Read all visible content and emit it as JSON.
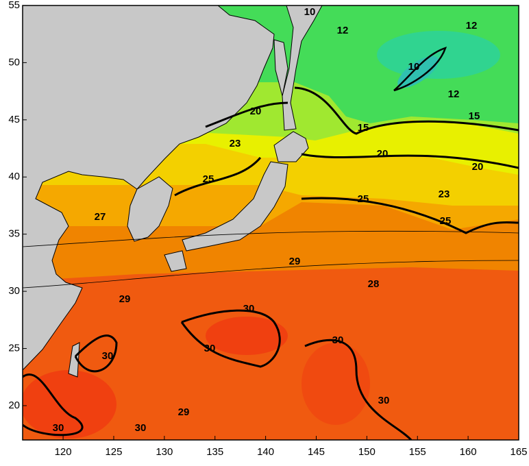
{
  "map": {
    "xlim": [
      116,
      165
    ],
    "ylim": [
      17,
      55
    ],
    "xticks": [
      120,
      125,
      130,
      135,
      140,
      145,
      150,
      155,
      160,
      165
    ],
    "yticks": [
      20,
      25,
      30,
      35,
      40,
      45,
      50,
      55
    ],
    "contour_labels": [
      10,
      12,
      12,
      10,
      12,
      15,
      15,
      20,
      20,
      20,
      23,
      23,
      25,
      25,
      25,
      27,
      28,
      29,
      29,
      29,
      30,
      30,
      30,
      30,
      30,
      30,
      30
    ]
  }
}
